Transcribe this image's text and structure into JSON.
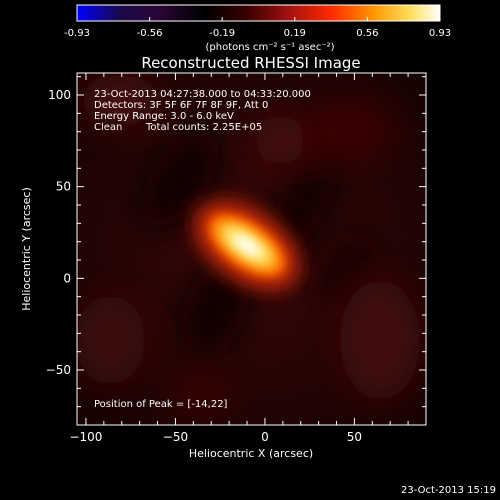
{
  "colors": {
    "background": "#000000",
    "foreground": "#ffffff",
    "colormap": [
      "#0000ff",
      "#1a0a4a",
      "#2b0637",
      "#000000",
      "#3a0000",
      "#a01010",
      "#ff2a00",
      "#ff9900",
      "#ffe060",
      "#ffffff"
    ]
  },
  "chart_data": {
    "type": "heatmap",
    "title": "Reconstructed RHESSI Image",
    "xlabel": "Heliocentric X (arcsec)",
    "ylabel": "Heliocentric Y (arcsec)",
    "xlim": [
      -105,
      90
    ],
    "ylim": [
      -80,
      112
    ],
    "xticks": [
      -100,
      -50,
      0,
      50
    ],
    "yticks": [
      -50,
      0,
      50,
      100
    ],
    "colorbar": {
      "range": [
        -0.93,
        0.93
      ],
      "ticks": [
        "-0.93",
        "-0.56",
        "-0.19",
        "0.19",
        "0.56",
        "0.93"
      ],
      "units": "(photons cm⁻² s⁻¹ asec⁻²)"
    },
    "annotations": {
      "time_range": "23-Oct-2013 04:27:38.000 to 04:33:20.000",
      "detectors": "Detectors: 3F 5F 6F 7F 8F 9F, Att 0",
      "energy": "Energy Range: 3.0 - 6.0 keV",
      "method": "Clean",
      "counts": "Total counts: 2.25E+05",
      "peak": "Position of Peak = [-14,22]"
    },
    "peak_position": [
      -14,
      22
    ],
    "source": {
      "center": [
        -10,
        18
      ],
      "peak_value": 0.93
    },
    "grid": false
  },
  "footer": {
    "timestamp": "23-Oct-2013 15:19"
  }
}
